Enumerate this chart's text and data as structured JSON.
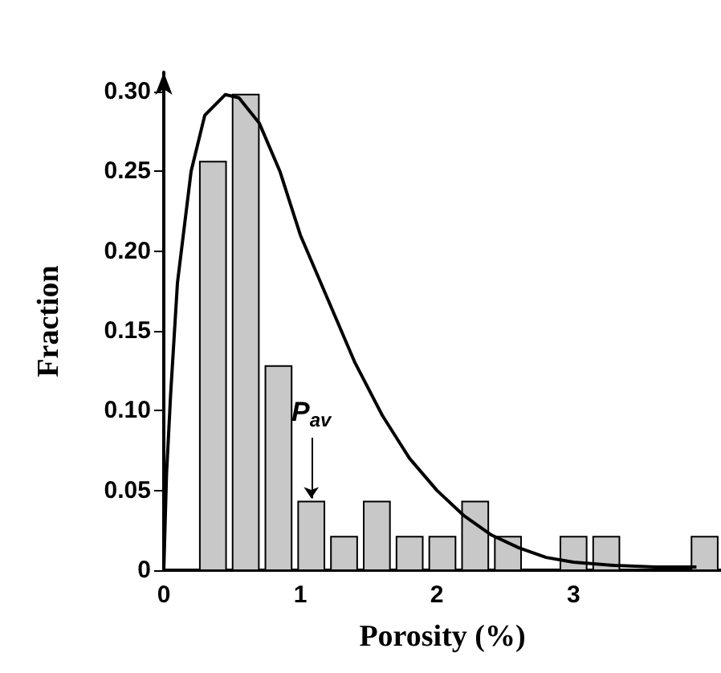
{
  "chart_data": {
    "type": "histogram",
    "xlabel": "Porosity (%)",
    "ylabel": "Fraction",
    "bins": [
      0.24,
      0.48,
      0.72,
      0.96,
      1.2,
      1.44,
      1.68,
      1.92,
      2.16,
      2.4,
      2.64,
      2.88,
      3.12,
      3.36,
      3.6,
      3.84,
      4.08
    ],
    "series": [
      {
        "color": "#c8c8c8",
        "values": [
          0.256,
          0.298,
          0.128,
          0.043,
          0.021,
          0.043,
          0.021,
          0.021,
          0.043,
          0.021,
          0,
          0.021,
          0.021,
          0,
          0,
          0.021
        ]
      },
      {
        "type": "line",
        "color": "#000000",
        "x": [
          0,
          0.02,
          0.05,
          0.1,
          0.2,
          0.3,
          0.45,
          0.55,
          0.7,
          0.85,
          1.0,
          1.2,
          1.4,
          1.6,
          1.8,
          2.0,
          2.2,
          2.4,
          2.6,
          2.8,
          3.0,
          3.3,
          3.6,
          3.9
        ],
        "values": [
          0,
          0.06,
          0.11,
          0.18,
          0.25,
          0.285,
          0.298,
          0.296,
          0.28,
          0.25,
          0.21,
          0.17,
          0.13,
          0.097,
          0.07,
          0.05,
          0.034,
          0.022,
          0.014,
          0.008,
          0.005,
          0.003,
          0.002,
          0.002
        ]
      }
    ],
    "annotations": [
      {
        "text": "P$_{av}$",
        "x": 1.08,
        "y": 0.043
      }
    ],
    "xlim": [
      0,
      4.08
    ],
    "ylim": [
      0,
      0.312
    ],
    "xticks": [
      0,
      1,
      2,
      3
    ],
    "yticks": [
      0,
      {
        "value": 0.05,
        "label": "0.05"
      },
      {
        "value": 0.1,
        "label": "0.10"
      },
      {
        "value": 0.15,
        "label": "0.15"
      },
      {
        "value": 0.2,
        "label": "0.20"
      },
      {
        "value": 0.25,
        "label": "0.25"
      },
      {
        "value": 0.3,
        "label": "0.30"
      }
    ],
    "grid": false,
    "marker": "none",
    "line_style": "solid"
  }
}
